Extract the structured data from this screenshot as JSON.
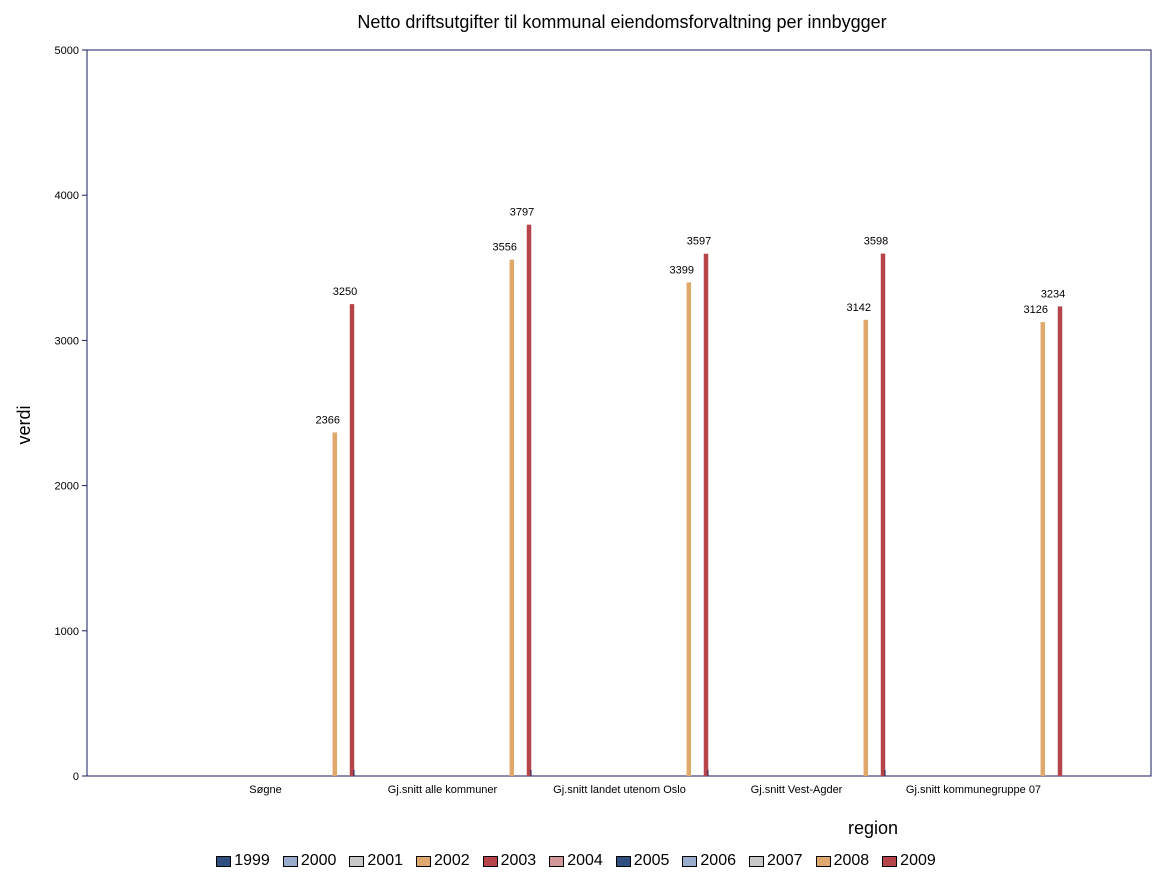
{
  "chart_data": {
    "type": "bar",
    "title": "Netto driftsutgifter til kommunal eiendomsforvaltning per innbygger",
    "xlabel": "region",
    "ylabel": "verdi",
    "ylim": [
      0,
      5000
    ],
    "yticks": [
      "0",
      "1000",
      "2000",
      "3000",
      "4000",
      "5000"
    ],
    "grid": false,
    "legend_position": "bottom",
    "categories": [
      "Søgne",
      "Gj.snitt alle kommuner",
      "Gj.snitt landet utenom Oslo",
      "Gj.snitt Vest-Agder",
      "Gj.snitt kommunegruppe 07"
    ],
    "series": [
      {
        "name": "1999",
        "color": "#2f4f7f",
        "values": [
          null,
          null,
          null,
          null,
          null
        ]
      },
      {
        "name": "2000",
        "color": "#9aaccc",
        "values": [
          null,
          null,
          null,
          null,
          null
        ]
      },
      {
        "name": "2001",
        "color": "#c8c8c8",
        "values": [
          null,
          null,
          null,
          null,
          null
        ]
      },
      {
        "name": "2002",
        "color": "#e0a86a",
        "values": [
          null,
          null,
          null,
          null,
          null
        ]
      },
      {
        "name": "2003",
        "color": "#b5454b",
        "values": [
          null,
          null,
          null,
          null,
          null
        ]
      },
      {
        "name": "2004",
        "color": "#d4979a",
        "values": [
          null,
          null,
          null,
          null,
          null
        ]
      },
      {
        "name": "2005",
        "color": "#2f4f7f",
        "values": [
          null,
          null,
          null,
          null,
          null
        ]
      },
      {
        "name": "2006",
        "color": "#9aaccc",
        "values": [
          null,
          null,
          null,
          null,
          null
        ]
      },
      {
        "name": "2007",
        "color": "#c8c8c8",
        "values": [
          null,
          null,
          null,
          null,
          null
        ]
      },
      {
        "name": "2008",
        "color": "#e0a86a",
        "values": [
          2366,
          3556,
          3399,
          3142,
          3126
        ]
      },
      {
        "name": "2009",
        "color": "#b5454b",
        "values": [
          3250,
          3797,
          3597,
          3598,
          3234
        ]
      }
    ],
    "data_labels": {
      "2008": [
        "2366",
        "3556",
        "3399",
        "3142",
        "3126"
      ],
      "2009": [
        "3250",
        "3797",
        "3597",
        "3598",
        "3234"
      ]
    },
    "axis_color": "#1a1a5e"
  }
}
